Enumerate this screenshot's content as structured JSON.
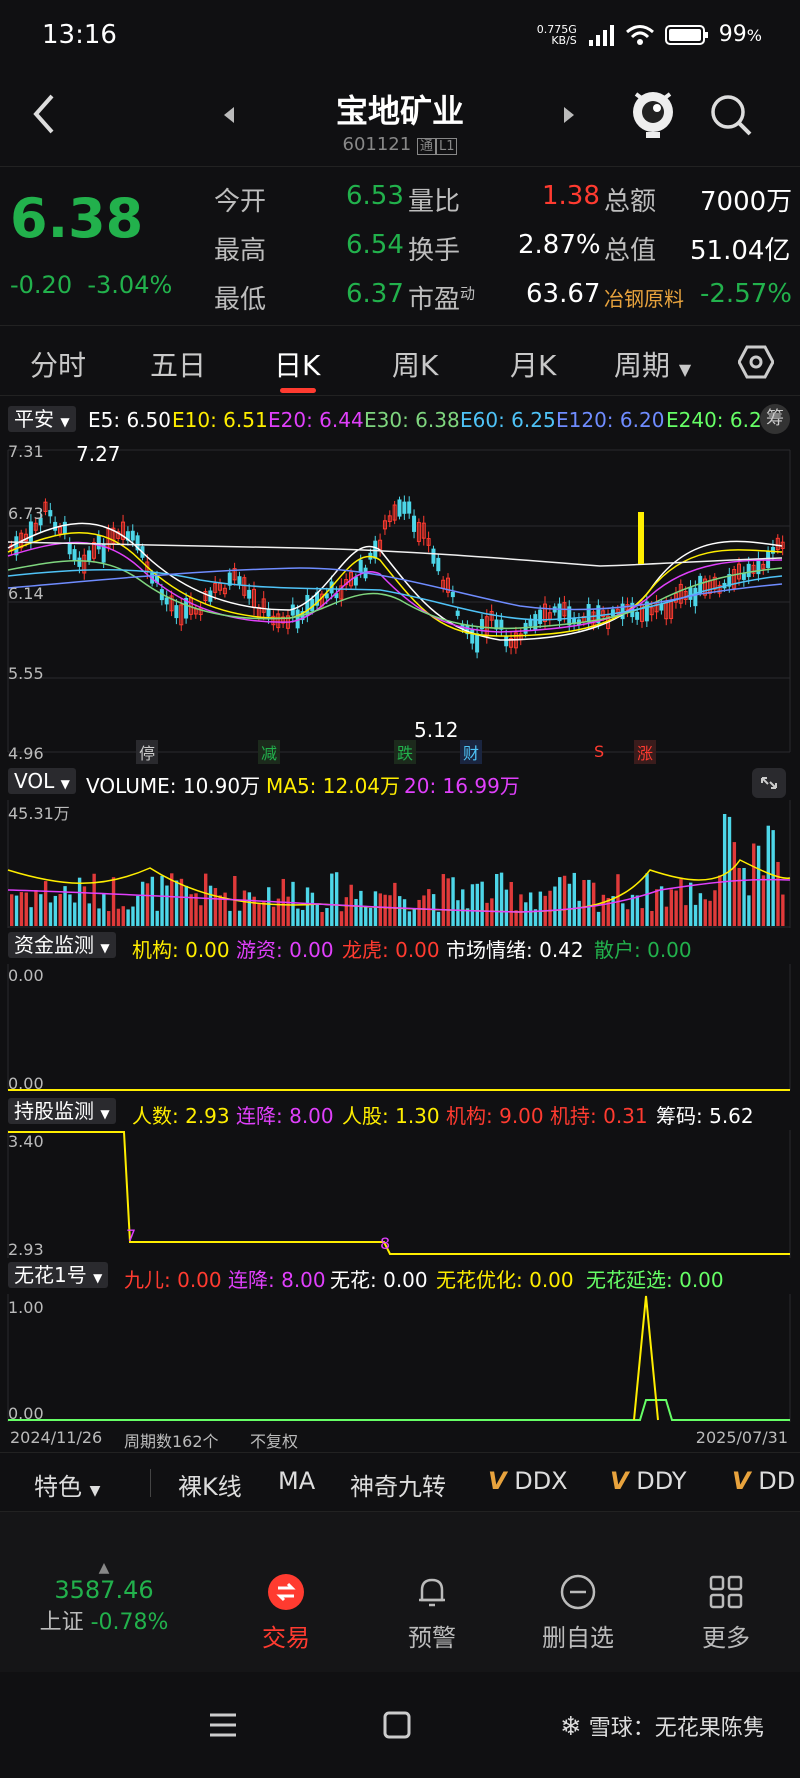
{
  "status": {
    "time": "13:16",
    "speed_top": "0.77",
    "speed_unit": "KB/S",
    "network": "5G",
    "battery": "99",
    "battery_unit": "%"
  },
  "header": {
    "title": "宝地矿业",
    "code": "601121",
    "badge1": "通",
    "badge2": "L1"
  },
  "quote": {
    "price": "6.38",
    "change": "-0.20",
    "change_pct": "-3.04%",
    "open_label": "今开",
    "open": "6.53",
    "high_label": "最高",
    "high": "6.54",
    "low_label": "最低",
    "low": "6.37",
    "volratio_label": "量比",
    "volratio": "1.38",
    "turnover_label": "换手",
    "turnover": "2.87%",
    "pe_label": "市盈",
    "pe_sup": "动",
    "pe": "63.67",
    "amount_label": "总额",
    "amount": "7000万",
    "mktcap_label": "总值",
    "mktcap": "51.04亿",
    "sector": "冶钢原料",
    "sector_pct": "-2.57%"
  },
  "tabs": [
    "分时",
    "五日",
    "日K",
    "周K",
    "月K",
    "周期"
  ],
  "ma_line": {
    "selector": "平安",
    "e5": "E5: 6.50",
    "e10": "E10: 6.51",
    "e20": "E20: 6.44",
    "e30": "E30: 6.38",
    "e60": "E60: 6.25",
    "e120": "E120: 6.20",
    "e240": "E240: 6.2",
    "chip": "筹"
  },
  "price_axis": [
    "7.31",
    "6.73",
    "6.14",
    "5.55",
    "4.96"
  ],
  "annotations": {
    "high": "7.27",
    "low": "5.12",
    "events": [
      "停",
      "减",
      "跌",
      "财",
      "S",
      "涨"
    ]
  },
  "vol_line": {
    "selector": "VOL",
    "volume": "VOLUME: 10.90万",
    "ma5": "MA5: 12.04万",
    "ma20": "20: 16.99万",
    "axis": "45.31万"
  },
  "fund_line": {
    "selector": "资金监测",
    "jg": "机构: 0.00",
    "yz": "游资: 0.00",
    "lh": "龙虎: 0.00",
    "sc": "市场情绪: 0.42",
    "sh": "散户: 0.00",
    "axis_top": "0.00",
    "axis_bottom": "0.00"
  },
  "hold_line": {
    "selector": "持股监测",
    "rs": "人数: 2.93",
    "lj": "连降: 8.00",
    "rg": "人股: 1.30",
    "jg": "机构: 9.00",
    "jc": "机持: 0.31",
    "cm": "筹码: 5.62",
    "axis_top": "3.40",
    "axis_bottom": "2.93",
    "mark1": "7",
    "mark2": "8"
  },
  "wh_line": {
    "selector": "无花1号",
    "je": "九儿: 0.00",
    "lj": "连降: 8.00",
    "wh": "无花: 0.00",
    "yh": "无花优化: 0.00",
    "yx": "无花延选: 0.00",
    "axis_top": "1.00",
    "axis_bottom": "0.00"
  },
  "footer_info": {
    "start": "2024/11/26",
    "count": "周期数162个",
    "adj": "不复权",
    "end": "2025/07/31"
  },
  "toolbar": {
    "feature": "特色",
    "items": [
      "裸K线",
      "MA",
      "神奇九转",
      "DDX",
      "DDY",
      "DD"
    ]
  },
  "index": {
    "value": "3587.46",
    "name": "上证",
    "pct": "-0.78%"
  },
  "bottom_nav": [
    "交易",
    "预警",
    "删自选",
    "更多"
  ],
  "watermark": "雪球：无花果陈隽",
  "colors": {
    "up": "#ff3b30",
    "down": "#22b14c",
    "bg": "#101012",
    "accent": "#ff3b30"
  }
}
